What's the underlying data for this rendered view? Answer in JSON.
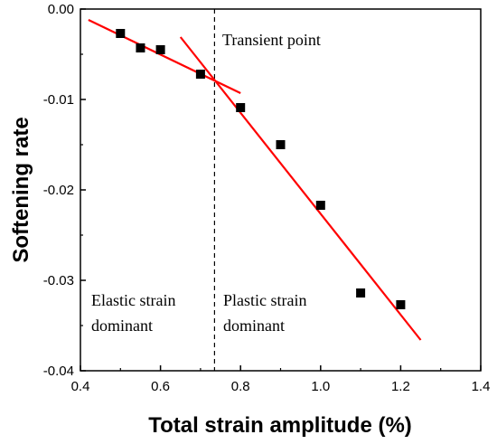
{
  "chart_data": {
    "type": "scatter",
    "xlabel": "Total strain amplitude (%)",
    "ylabel": "Softening rate",
    "xlim": [
      0.4,
      1.4
    ],
    "ylim": [
      -0.04,
      0.0
    ],
    "x_ticks": [
      "0.4",
      "0.6",
      "0.8",
      "1.0",
      "1.2",
      "1.4"
    ],
    "y_ticks": [
      "0.00",
      "-0.01",
      "-0.02",
      "-0.03",
      "-0.04"
    ],
    "grid": false,
    "series": [
      {
        "marker": "filled-square",
        "color": "#000000",
        "points": [
          {
            "x": 0.5,
            "y": -0.0027
          },
          {
            "x": 0.55,
            "y": -0.0043
          },
          {
            "x": 0.6,
            "y": -0.0045
          },
          {
            "x": 0.7,
            "y": -0.0072
          },
          {
            "x": 0.8,
            "y": -0.0109
          },
          {
            "x": 0.9,
            "y": -0.015
          },
          {
            "x": 1.0,
            "y": -0.0217
          },
          {
            "x": 1.1,
            "y": -0.0314
          },
          {
            "x": 1.2,
            "y": -0.0327
          }
        ]
      }
    ],
    "fit_lines": [
      {
        "color": "#ff0000",
        "from": {
          "x": 0.42,
          "y": -0.0012
        },
        "to": {
          "x": 0.8,
          "y": -0.0093
        }
      },
      {
        "color": "#ff0000",
        "from": {
          "x": 0.65,
          "y": -0.0031
        },
        "to": {
          "x": 1.25,
          "y": -0.0366
        }
      }
    ],
    "vertical_reference": {
      "x": 0.735,
      "style": "dashed",
      "color": "#000000"
    },
    "annotations": {
      "transient": "Transient  point",
      "elastic_line1": "Elastic strain",
      "elastic_line2": "dominant",
      "plastic_line1": "Plastic strain",
      "plastic_line2": "dominant"
    }
  }
}
